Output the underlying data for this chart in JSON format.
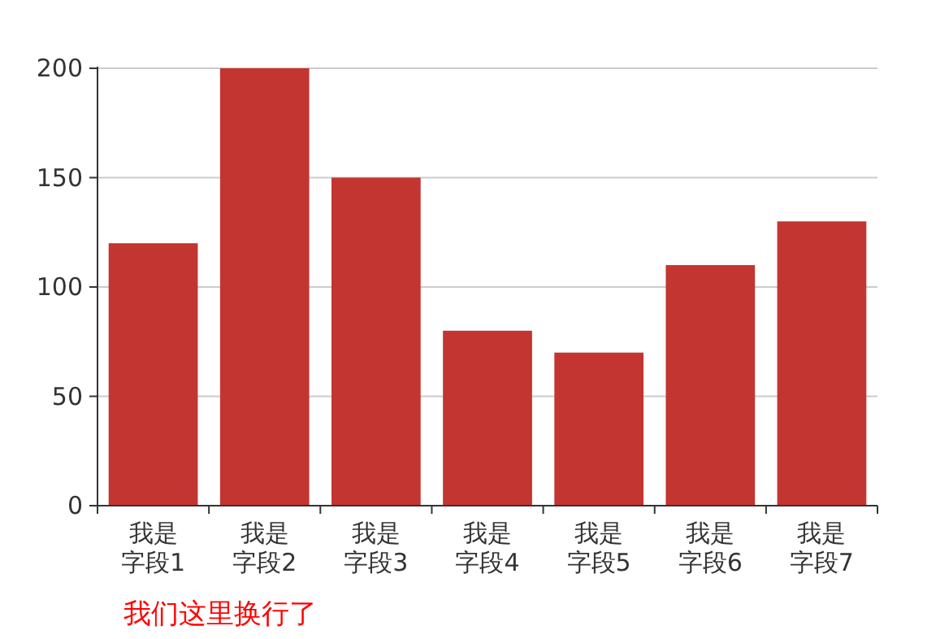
{
  "chart_data": {
    "type": "bar",
    "categories": [
      "我是字段1",
      "我是字段2",
      "我是字段3",
      "我是字段4",
      "我是字段5",
      "我是字段6",
      "我是字段7"
    ],
    "values": [
      120,
      200,
      150,
      80,
      70,
      110,
      130
    ],
    "color": "#c23531",
    "ylim": [
      0,
      200
    ],
    "yticks": [
      0,
      50,
      100,
      150,
      200
    ],
    "grid": "y",
    "annotations": [
      "我们这里换行了"
    ]
  }
}
